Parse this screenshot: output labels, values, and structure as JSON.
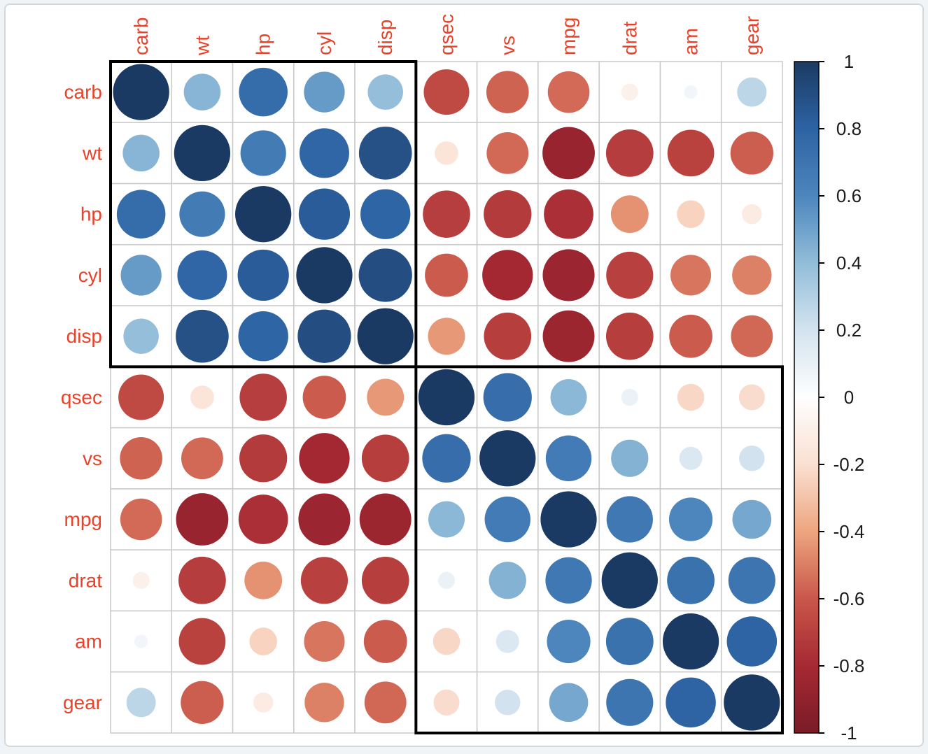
{
  "page": {
    "background_color": "#f1f4f6",
    "panel_color": "#ffffff",
    "panel_border_color": "#d4d8db"
  },
  "chart_data": {
    "type": "heatmap",
    "subtype": "correlation-matrix-circles",
    "title": "",
    "variables": [
      "carb",
      "wt",
      "hp",
      "cyl",
      "disp",
      "qsec",
      "vs",
      "mpg",
      "drat",
      "am",
      "gear"
    ],
    "matrix": [
      [
        1.0,
        0.428,
        0.75,
        0.527,
        0.395,
        -0.656,
        -0.57,
        -0.551,
        -0.091,
        0.058,
        0.274
      ],
      [
        0.428,
        1.0,
        0.659,
        0.782,
        0.888,
        -0.175,
        -0.555,
        -0.868,
        -0.712,
        -0.692,
        -0.583
      ],
      [
        0.75,
        0.659,
        1.0,
        0.832,
        0.791,
        -0.708,
        -0.723,
        -0.776,
        -0.449,
        -0.243,
        -0.126
      ],
      [
        0.527,
        0.782,
        0.832,
        1.0,
        0.902,
        -0.591,
        -0.811,
        -0.852,
        -0.7,
        -0.523,
        -0.493
      ],
      [
        0.395,
        0.888,
        0.791,
        0.902,
        1.0,
        -0.434,
        -0.71,
        -0.848,
        -0.71,
        -0.591,
        -0.556
      ],
      [
        -0.656,
        -0.175,
        -0.708,
        -0.591,
        -0.434,
        1.0,
        0.745,
        0.419,
        0.091,
        -0.23,
        -0.213
      ],
      [
        -0.57,
        -0.555,
        -0.723,
        -0.811,
        -0.71,
        0.745,
        1.0,
        0.664,
        0.44,
        0.168,
        0.206
      ],
      [
        -0.551,
        -0.868,
        -0.776,
        -0.852,
        -0.848,
        0.419,
        0.664,
        1.0,
        0.681,
        0.6,
        0.48
      ],
      [
        -0.091,
        -0.712,
        -0.449,
        -0.7,
        -0.71,
        0.091,
        0.44,
        0.681,
        1.0,
        0.713,
        0.7
      ],
      [
        0.058,
        -0.692,
        -0.243,
        -0.523,
        -0.591,
        -0.23,
        0.168,
        0.6,
        0.713,
        1.0,
        0.794
      ],
      [
        0.274,
        -0.583,
        -0.126,
        -0.493,
        -0.556,
        -0.213,
        0.206,
        0.48,
        0.7,
        0.794,
        1.0
      ]
    ],
    "value_range": [
      -1,
      1
    ],
    "cluster_rects": [
      {
        "start_index": 0,
        "end_index": 4
      },
      {
        "start_index": 5,
        "end_index": 10
      }
    ],
    "colorbar": {
      "position": "right",
      "tick_labels": [
        "1",
        "0.8",
        "0.6",
        "0.4",
        "0.2",
        "0",
        "-0.2",
        "-0.4",
        "-0.6",
        "-0.8",
        "-1"
      ],
      "tick_values": [
        1,
        0.8,
        0.6,
        0.4,
        0.2,
        0,
        -0.2,
        -0.4,
        -0.6,
        -0.8,
        -1
      ]
    },
    "palette_stops": [
      {
        "value": 1.0,
        "color": "#1b3a63"
      },
      {
        "value": 0.8,
        "color": "#2d63a3"
      },
      {
        "value": 0.6,
        "color": "#4c86bd"
      },
      {
        "value": 0.4,
        "color": "#92bdd9"
      },
      {
        "value": 0.2,
        "color": "#d4e3ef"
      },
      {
        "value": 0.0,
        "color": "#fefefe"
      },
      {
        "value": -0.2,
        "color": "#fae0d2"
      },
      {
        "value": -0.4,
        "color": "#eda57f"
      },
      {
        "value": -0.6,
        "color": "#c9574a"
      },
      {
        "value": -0.8,
        "color": "#a62933"
      },
      {
        "value": -1.0,
        "color": "#7a1b27"
      }
    ],
    "style": {
      "label_color": "#e8432a",
      "grid_color": "#c9c9c9",
      "cluster_rect_color": "#000000",
      "colorbar_border_color": "#000000",
      "tick_label_color": "#1a1a1a"
    },
    "legend_position": "right",
    "grid": true
  }
}
